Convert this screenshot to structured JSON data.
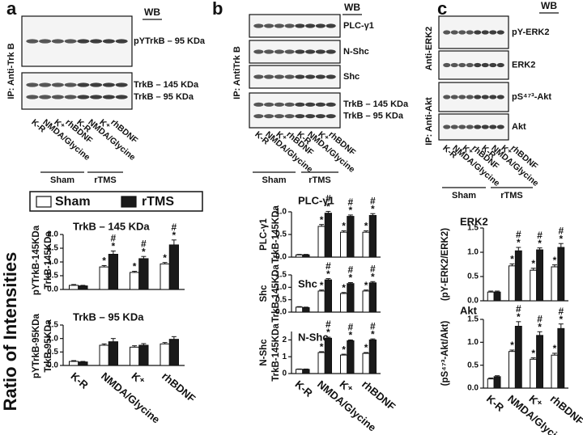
{
  "figure": {
    "y_label": "Ratio of Intensities",
    "panels": [
      {
        "label": "a",
        "wb": "WB",
        "ip_labels": [
          "IP: Anti-Trk B"
        ],
        "blots": [
          [
            "pYTrkB – 95 KDa"
          ],
          [
            "TrkB – 145 KDa",
            "TrkB – 95 KDa"
          ]
        ],
        "lanes": [
          "K-R",
          "NMDA/Glycine",
          "K⁺",
          "rhBDNF"
        ],
        "groups": [
          "Sham",
          "rTMS"
        ]
      },
      {
        "label": "b",
        "wb": "WB",
        "ip_labels": [
          "IP: AntiTrk B"
        ],
        "blots": [
          [
            "PLC-γ1"
          ],
          [
            "N-Shc"
          ],
          [
            "Shc"
          ],
          [
            "TrkB – 145 KDa",
            "TrkB – 95 KDa"
          ]
        ],
        "lanes": [
          "K-R",
          "NMDA/Glycine",
          "K⁺",
          "rhBDNF"
        ],
        "groups": [
          "Sham",
          "rTMS"
        ]
      },
      {
        "label": "c",
        "wb": "WB",
        "ip_labels": [
          "Anti-ERK2",
          "IP: Anti-Akt"
        ],
        "blots": [
          [
            "pY-ERK2"
          ],
          [
            "ERK2"
          ],
          [
            "pS⁴⁷³-Akt"
          ],
          [
            "Akt"
          ]
        ],
        "lanes": [
          "K-R",
          "NMDA/Glycine",
          "K⁺",
          "rhBDNF"
        ],
        "groups": [
          "Sham",
          "rTMS"
        ]
      }
    ]
  },
  "chart_data": [
    {
      "type": "bar",
      "title": "TrkB – 145 KDa",
      "y_label": [
        "pYTrkB-145KDa",
        "TrkB-145KDa"
      ],
      "ylim": [
        0,
        2
      ],
      "yticks": [
        {
          "value": 0,
          "label": "0.0"
        },
        {
          "value": 0.5,
          "label": "0.5"
        },
        {
          "value": 1,
          "label": "1.0"
        },
        {
          "value": 1.5,
          "label": "1.5"
        },
        {
          "value": 2,
          "label": "2.0"
        }
      ],
      "series": [
        {
          "name": "Sham",
          "color": "#ffffff",
          "values": [
            0.15,
            0.82,
            0.62,
            0.93
          ],
          "errors": [
            0.03,
            0.05,
            0.04,
            0.05
          ],
          "annotations": [
            null,
            "*",
            "*",
            "*"
          ]
        },
        {
          "name": "rTMS",
          "color": "#1a1a1a",
          "values": [
            0.13,
            1.28,
            1.12,
            1.62
          ],
          "errors": [
            0.02,
            0.12,
            0.08,
            0.18
          ],
          "annotations": [
            null,
            [
              "#",
              "*"
            ],
            [
              "#",
              "*"
            ],
            [
              "#",
              "*"
            ]
          ]
        }
      ]
    },
    {
      "type": "bar",
      "title": "TrkB – 95 KDa",
      "y_label": [
        "pYTrkB-95KDa",
        "TrkB-95KDa"
      ],
      "categories": [
        "K-R",
        "NMDA/Glycine",
        "K⁺",
        "rhBDNF"
      ],
      "ylim": [
        0,
        1.5
      ],
      "yticks": [
        {
          "value": 0,
          "label": "0.0"
        },
        {
          "value": 0.5,
          "label": "0.5"
        },
        {
          "value": 1,
          "label": "1.0"
        },
        {
          "value": 1.5,
          "label": "1.5"
        }
      ],
      "series": [
        {
          "color": "#ffffff",
          "values": [
            0.15,
            0.75,
            0.68,
            0.8
          ],
          "errors": [
            0.03,
            0.05,
            0.05,
            0.05
          ]
        },
        {
          "color": "#1a1a1a",
          "values": [
            0.13,
            0.88,
            0.75,
            0.97
          ],
          "errors": [
            0.02,
            0.12,
            0.06,
            0.1
          ]
        }
      ]
    },
    {
      "type": "bar",
      "title": "PLC-γ1",
      "y_label": [
        "PLC-γ1",
        "TrkB-145KDa"
      ],
      "ylim": [
        0,
        1
      ],
      "yticks": [
        {
          "value": 0,
          "label": "0.0"
        },
        {
          "value": 0.5,
          "label": "0.5"
        },
        {
          "value": 1,
          "label": "1.0"
        }
      ],
      "series": [
        {
          "color": "#ffffff",
          "values": [
            0.05,
            0.68,
            0.55,
            0.55
          ],
          "errors": [
            0.01,
            0.04,
            0.03,
            0.03
          ],
          "annotations": [
            null,
            "*",
            "*",
            "*"
          ]
        },
        {
          "color": "#1a1a1a",
          "values": [
            0.05,
            0.97,
            0.9,
            0.92
          ],
          "errors": [
            0.01,
            0.04,
            0.03,
            0.04
          ],
          "annotations": [
            null,
            [
              "#",
              "*"
            ],
            [
              "#",
              "*"
            ],
            [
              "#",
              "*"
            ]
          ]
        }
      ]
    },
    {
      "type": "bar",
      "title": "Shc",
      "y_label": [
        "Shc",
        "TrkB-145KDa"
      ],
      "ylim": [
        0,
        1.5
      ],
      "yticks": [
        {
          "value": 0,
          "label": "0.0"
        },
        {
          "value": 0.5,
          "label": "0.5"
        },
        {
          "value": 1,
          "label": "1.0"
        },
        {
          "value": 1.5,
          "label": "1.5"
        }
      ],
      "series": [
        {
          "color": "#ffffff",
          "values": [
            0.2,
            0.85,
            0.75,
            0.85
          ],
          "errors": [
            0.02,
            0.04,
            0.04,
            0.04
          ],
          "annotations": [
            null,
            "*",
            "*",
            "*"
          ]
        },
        {
          "color": "#1a1a1a",
          "values": [
            0.18,
            1.3,
            1.15,
            1.18
          ],
          "errors": [
            0.02,
            0.05,
            0.04,
            0.05
          ],
          "annotations": [
            null,
            [
              "#",
              "*"
            ],
            [
              "#",
              "*"
            ],
            [
              "#",
              "*"
            ]
          ]
        }
      ]
    },
    {
      "type": "bar",
      "title": "N-Shc",
      "y_label": [
        "N-Shc",
        "TrkB-145KDa"
      ],
      "categories": [
        "K-R",
        "NMDA/Glycine",
        "K⁺",
        "rhBDNF"
      ],
      "ylim": [
        0,
        2.5
      ],
      "yticks": [
        0,
        1,
        2
      ],
      "series": [
        {
          "color": "#ffffff",
          "values": [
            0.25,
            1.25,
            1.1,
            1.2
          ],
          "errors": [
            0.02,
            0.05,
            0.05,
            0.05
          ],
          "annotations": [
            null,
            "*",
            "*",
            "*"
          ]
        },
        {
          "color": "#1a1a1a",
          "values": [
            0.25,
            2.1,
            1.95,
            2.0
          ],
          "errors": [
            0.02,
            0.06,
            0.05,
            0.06
          ],
          "annotations": [
            null,
            [
              "#",
              "*"
            ],
            [
              "#",
              "*"
            ],
            [
              "#",
              "*"
            ]
          ]
        }
      ]
    },
    {
      "type": "bar",
      "title": "ERK2",
      "y_label": [
        "(pY-ERK2/ERK2)"
      ],
      "ylim": [
        0,
        1.5
      ],
      "yticks": [
        {
          "value": 0,
          "label": "0.0"
        },
        {
          "value": 0.5,
          "label": "0.5"
        },
        {
          "value": 1,
          "label": "1.0"
        },
        {
          "value": 1.5,
          "label": "1.5"
        }
      ],
      "series": [
        {
          "color": "#ffffff",
          "values": [
            0.18,
            0.72,
            0.63,
            0.7
          ],
          "errors": [
            0.02,
            0.04,
            0.04,
            0.04
          ],
          "annotations": [
            null,
            "*",
            "*",
            "*"
          ]
        },
        {
          "color": "#1a1a1a",
          "values": [
            0.18,
            1.03,
            1.05,
            1.1
          ],
          "errors": [
            0.02,
            0.07,
            0.04,
            0.08
          ],
          "annotations": [
            null,
            [
              "#",
              "*"
            ],
            [
              "#",
              "*"
            ],
            [
              "#",
              "*"
            ]
          ]
        }
      ]
    },
    {
      "type": "bar",
      "title": "Akt",
      "y_label": [
        "(pS⁴⁷³-Akt/Akt)"
      ],
      "categories": [
        "K-R",
        "NMDA/Glycine",
        "K⁺",
        "rhBDNF"
      ],
      "ylim": [
        0,
        1.5
      ],
      "yticks": [
        {
          "value": 0,
          "label": "0.0"
        },
        {
          "value": 0.5,
          "label": "0.5"
        },
        {
          "value": 1,
          "label": "1.0"
        },
        {
          "value": 1.5,
          "label": "1.5"
        }
      ],
      "series": [
        {
          "color": "#ffffff",
          "values": [
            0.2,
            0.8,
            0.63,
            0.72
          ],
          "errors": [
            0.02,
            0.03,
            0.03,
            0.04
          ],
          "annotations": [
            null,
            "*",
            "*",
            "*"
          ]
        },
        {
          "color": "#1a1a1a",
          "values": [
            0.25,
            1.35,
            1.15,
            1.3
          ],
          "errors": [
            0.02,
            0.1,
            0.08,
            0.1
          ],
          "annotations": [
            null,
            [
              "#",
              "*"
            ],
            [
              "#",
              "*"
            ],
            [
              "#",
              "*"
            ]
          ]
        }
      ]
    }
  ]
}
